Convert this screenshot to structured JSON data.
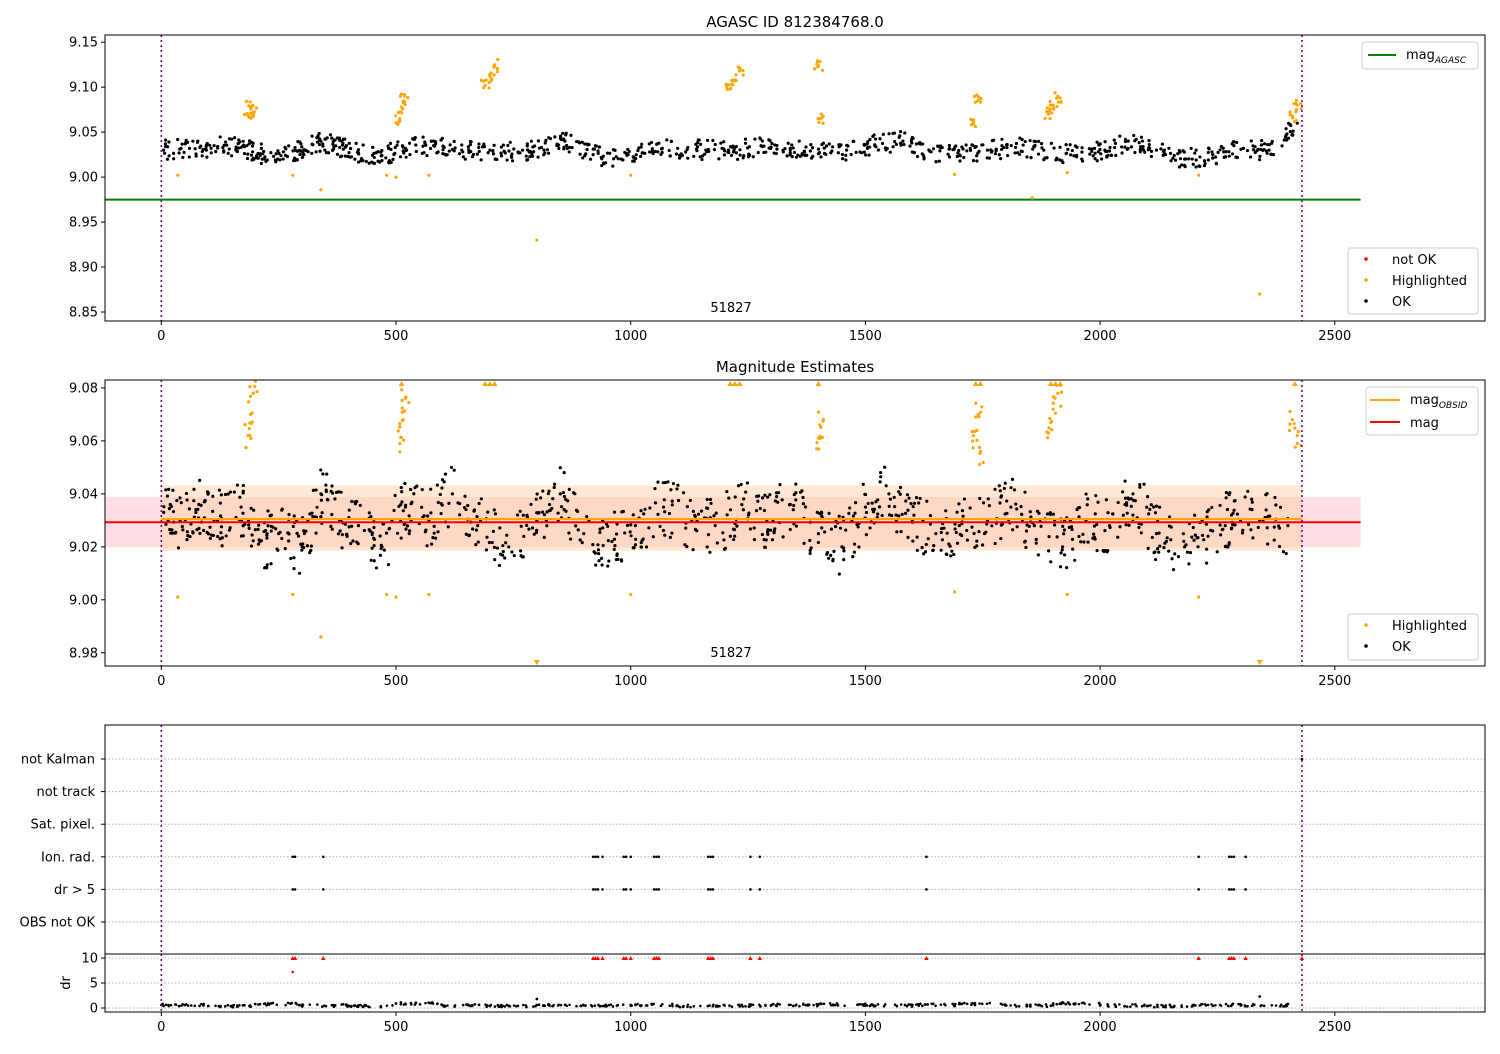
{
  "chart_data": [
    {
      "type": "scatter",
      "title": "AGASC ID 812384768.0",
      "annotation": "51827",
      "xlim": [
        -120,
        2820
      ],
      "ylim": [
        8.84,
        9.158
      ],
      "x_ticks": [
        0,
        500,
        1000,
        1500,
        2000,
        2500
      ],
      "x_tick_labels": [
        "0",
        "500",
        "1000",
        "1500",
        "2000",
        "2500"
      ],
      "y_ticks": [
        8.85,
        8.9,
        8.95,
        9.0,
        9.05,
        9.1,
        9.15
      ],
      "y_tick_labels": [
        "8.85",
        "8.90",
        "8.95",
        "9.00",
        "9.05",
        "9.10",
        "9.15"
      ],
      "grid": false,
      "vlines": [
        0,
        2430
      ],
      "hlines": [
        {
          "name": "mag_AGASC",
          "y": 8.975,
          "x": [
            -120,
            2555
          ],
          "color": "#008000"
        }
      ],
      "series": [
        {
          "name": "not OK",
          "color": "#ff0000",
          "x": [],
          "y": []
        },
        {
          "name": "Highlighted",
          "color": "#ffa500",
          "x": [
            185,
            190,
            196,
            508,
            512,
            518,
            690,
            700,
            710,
            1212,
            1222,
            1232,
            1400,
            1403,
            1730,
            1740,
            1890,
            1900,
            1910,
            2410,
            2420,
            35,
            280,
            340,
            480,
            500,
            570,
            800,
            1000,
            1690,
            1855,
            1930,
            2210,
            2340
          ],
          "y": [
            9.068,
            9.078,
            9.072,
            9.065,
            9.078,
            9.09,
            9.102,
            9.112,
            9.124,
            9.098,
            9.108,
            9.118,
            9.124,
            9.065,
            9.062,
            9.085,
            9.07,
            9.08,
            9.09,
            9.068,
            9.08,
            9.002,
            9.002,
            8.986,
            9.002,
            9.0,
            9.002,
            8.93,
            9.002,
            9.003,
            8.977,
            9.005,
            9.002,
            8.87
          ]
        },
        {
          "name": "OK",
          "color": "#000000",
          "x": [
            5,
            60,
            120,
            170,
            210,
            260,
            300,
            340,
            380,
            420,
            470,
            520,
            580,
            640,
            700,
            760,
            810,
            860,
            920,
            980,
            1040,
            1100,
            1160,
            1220,
            1280,
            1340,
            1400,
            1460,
            1520,
            1580,
            1640,
            1700,
            1760,
            1820,
            1880,
            1950,
            2010,
            2060,
            2120,
            2180,
            2240,
            2300,
            2360,
            2420
          ],
          "y": [
            9.03,
            9.032,
            9.034,
            9.033,
            9.026,
            9.028,
            9.029,
            9.04,
            9.033,
            9.027,
            9.024,
            9.032,
            9.035,
            9.03,
            9.03,
            9.028,
            9.033,
            9.04,
            9.025,
            9.02,
            9.028,
            9.032,
            9.03,
            9.03,
            9.034,
            9.032,
            9.026,
            9.03,
            9.036,
            9.04,
            9.028,
            9.025,
            9.03,
            9.033,
            9.03,
            9.024,
            9.03,
            9.04,
            9.03,
            9.02,
            9.025,
            9.031,
            9.03,
            9.06
          ]
        }
      ],
      "legend_top": {
        "position": "upper right",
        "entries": [
          {
            "label": "mag",
            "sub": "AGASC",
            "color": "#008000"
          }
        ]
      },
      "legend_bottom": {
        "position": "lower right",
        "entries": [
          {
            "label": "not OK",
            "color": "#ff0000"
          },
          {
            "label": "Highlighted",
            "color": "#ffa500"
          },
          {
            "label": "OK",
            "color": "#000000"
          }
        ]
      }
    },
    {
      "type": "scatter",
      "title": "Magnitude Estimates",
      "annotation": "51827",
      "xlim": [
        -120,
        2820
      ],
      "ylim": [
        8.975,
        9.083
      ],
      "x_ticks": [
        0,
        500,
        1000,
        1500,
        2000,
        2500
      ],
      "x_tick_labels": [
        "0",
        "500",
        "1000",
        "1500",
        "2000",
        "2500"
      ],
      "y_ticks": [
        8.98,
        9.0,
        9.02,
        9.04,
        9.06,
        9.08
      ],
      "y_tick_labels": [
        "8.98",
        "9.00",
        "9.02",
        "9.04",
        "9.06",
        "9.08"
      ],
      "grid": false,
      "vlines": [
        0,
        2430
      ],
      "bands": [
        {
          "name": "mag",
          "x": [
            -120,
            2555
          ],
          "y": [
            9.0198,
            9.0388
          ],
          "color": "#ffdfe3"
        },
        {
          "name": "mag_OBSID",
          "x": [
            0,
            2430
          ],
          "y": [
            9.0185,
            9.0432
          ],
          "color": "#ffcfa0",
          "opacity": 0.45
        }
      ],
      "hlines": [
        {
          "name": "mag",
          "y": 9.0293,
          "x": [
            -120,
            2555
          ],
          "color": "#ff0000"
        },
        {
          "name": "mag_OBSID",
          "y": 9.0305,
          "x": [
            0,
            2430
          ],
          "color": "#ffa500"
        }
      ],
      "series": [
        {
          "name": "Highlighted",
          "color": "#ffa500",
          "x": [
            185,
            190,
            196,
            508,
            515,
            520,
            1400,
            1403,
            1730,
            1740,
            1745,
            1890,
            1900,
            1910,
            2410,
            2420,
            35,
            280,
            340,
            480,
            500,
            570,
            1000,
            1690,
            1930,
            2210
          ],
          "y": [
            9.062,
            9.07,
            9.078,
            9.059,
            9.068,
            9.076,
            9.061,
            9.066,
            9.062,
            9.07,
            9.056,
            9.063,
            9.072,
            9.078,
            9.068,
            9.062,
            9.001,
            9.002,
            8.986,
            9.002,
            9.001,
            9.002,
            9.002,
            9.003,
            9.002,
            9.001
          ]
        },
        {
          "name": "Highlighted (clipped)",
          "color": "#ffa500",
          "x": [
            512,
            690,
            700,
            710,
            1212,
            1222,
            1232,
            1400,
            1735,
            1745,
            1895,
            1905,
            1915,
            2415,
            800,
            2340
          ],
          "y": [
            9.083,
            9.083,
            9.083,
            9.083,
            9.083,
            9.083,
            9.083,
            9.083,
            9.083,
            9.083,
            9.083,
            9.083,
            9.083,
            9.083,
            8.975,
            8.975
          ]
        },
        {
          "name": "OK",
          "color": "#000000",
          "x": [
            5,
            40,
            80,
            120,
            170,
            210,
            250,
            300,
            340,
            380,
            420,
            470,
            520,
            570,
            620,
            680,
            740,
            800,
            850,
            900,
            960,
            1010,
            1070,
            1130,
            1180,
            1240,
            1290,
            1340,
            1400,
            1450,
            1500,
            1550,
            1600,
            1650,
            1700,
            1760,
            1810,
            1860,
            1920,
            1970,
            2020,
            2070,
            2120,
            2180,
            2230,
            2280,
            2340,
            2400
          ],
          "y": [
            9.033,
            9.03,
            9.036,
            9.03,
            9.035,
            9.022,
            9.025,
            9.02,
            9.04,
            9.03,
            9.028,
            9.02,
            9.035,
            9.03,
            9.04,
            9.03,
            9.02,
            9.03,
            9.04,
            9.025,
            9.022,
            9.028,
            9.035,
            9.03,
            9.028,
            9.034,
            9.03,
            9.036,
            9.025,
            9.02,
            9.035,
            9.04,
            9.03,
            9.025,
            9.028,
            9.03,
            9.035,
            9.028,
            9.02,
            9.03,
            9.028,
            9.04,
            9.025,
            9.02,
            9.024,
            9.032,
            9.03,
            9.028
          ]
        }
      ],
      "legend_top": {
        "position": "upper right",
        "entries": [
          {
            "label": "mag",
            "sub": "OBSID",
            "color": "#ffa500"
          },
          {
            "label": "mag",
            "sub": "",
            "color": "#ff0000"
          }
        ]
      },
      "legend_bottom": {
        "position": "lower right",
        "entries": [
          {
            "label": "Highlighted",
            "color": "#ffa500"
          },
          {
            "label": "OK",
            "color": "#000000"
          }
        ]
      }
    },
    {
      "type": "scatter",
      "title": "",
      "xlim": [
        -120,
        2820
      ],
      "rows": [
        "not Kalman",
        "not track",
        "Sat. pixel.",
        "Ion. rad.",
        "dr > 5",
        "OBS not OK"
      ],
      "grid": true,
      "vlines": [
        0,
        2430
      ],
      "flag_points": {
        "Ion. rad.": [
          280,
          285,
          345,
          920,
          925,
          930,
          940,
          985,
          990,
          1000,
          1050,
          1055,
          1060,
          1165,
          1170,
          1175,
          1255,
          1275,
          1630,
          2210,
          2275,
          2280,
          2285,
          2310
        ],
        "dr > 5": [
          280,
          285,
          345,
          920,
          925,
          930,
          940,
          985,
          990,
          1000,
          1050,
          1055,
          1060,
          1165,
          1170,
          1175,
          1255,
          1275,
          1630,
          2210,
          2275,
          2280,
          2285,
          2310
        ],
        "not Kalman": [
          2430
        ]
      }
    },
    {
      "type": "scatter",
      "title": "",
      "ylabel": "dr",
      "xlim": [
        -120,
        2820
      ],
      "ylim": [
        -0.8,
        10.8
      ],
      "x_ticks": [
        0,
        500,
        1000,
        1500,
        2000,
        2500
      ],
      "x_tick_labels": [
        "0",
        "500",
        "1000",
        "1500",
        "2000",
        "2500"
      ],
      "y_ticks": [
        0,
        5,
        10
      ],
      "y_tick_labels": [
        "0",
        "5",
        "10"
      ],
      "grid": true,
      "vlines": [
        0,
        2430
      ],
      "series": [
        {
          "name": "dr",
          "color": "#000000",
          "x": [
            0,
            100,
            200,
            300,
            400,
            500,
            600,
            700,
            800,
            900,
            1000,
            1100,
            1200,
            1300,
            1400,
            1500,
            1600,
            1700,
            1800,
            1900,
            2000,
            2100,
            2200,
            2300,
            2400,
            800,
            2340
          ],
          "y": [
            0.6,
            0.4,
            0.8,
            0.5,
            0.4,
            0.9,
            0.5,
            0.4,
            0.6,
            0.5,
            0.6,
            0.4,
            0.5,
            0.6,
            0.7,
            0.5,
            0.6,
            0.8,
            0.5,
            0.9,
            0.5,
            0.4,
            0.6,
            0.5,
            0.8,
            1.8,
            2.3
          ]
        },
        {
          "name": "dr > 10",
          "color": "#ff0000",
          "x": [
            280,
            285,
            345,
            920,
            925,
            930,
            940,
            985,
            990,
            1000,
            1050,
            1055,
            1060,
            1165,
            1170,
            1175,
            1255,
            1275,
            1630,
            2210,
            2275,
            2280,
            2285,
            2310,
            2430
          ],
          "y": [
            10,
            10,
            10,
            10,
            10,
            10,
            10,
            10,
            10,
            10,
            10,
            10,
            10,
            10,
            10,
            10,
            10,
            10,
            10,
            10,
            10,
            10,
            10,
            10,
            10
          ]
        },
        {
          "name": "dr (red)",
          "color": "#ff0000",
          "x": [
            280
          ],
          "y": [
            7.2
          ]
        }
      ]
    }
  ]
}
